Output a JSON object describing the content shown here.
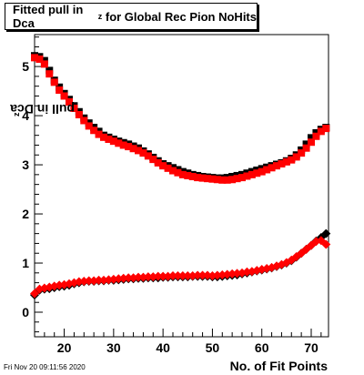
{
  "title": {
    "main": "Fitted pull in Dca",
    "sub": "z",
    "rest": " for Global Rec Pion NoHits"
  },
  "stamp": "Fri Nov 20 09:11:56 2020",
  "chart_data": {
    "type": "scatter",
    "title": "Fitted pull in Dca_z for Global Rec Pion NoHits",
    "xlabel": "No. of Fit Points",
    "ylabel": "pull in Dca_z",
    "ylabel_main": "pull in Dca",
    "ylabel_sub": "z",
    "xlim": [
      14,
      73.5
    ],
    "ylim": [
      -0.5,
      5.65
    ],
    "xticks": [
      20,
      30,
      40,
      50,
      60,
      70
    ],
    "xticklabels": [
      "20",
      "30",
      "40",
      "50",
      "60",
      "70"
    ],
    "yticks": [
      0,
      1,
      2,
      3,
      4,
      5
    ],
    "yticklabels": [
      "0",
      "1",
      "2",
      "3",
      "4",
      "5"
    ],
    "grid": false,
    "legend": "none",
    "series": [
      {
        "marker": "square",
        "color": "#000000",
        "x": [
          14,
          15,
          16,
          17,
          18,
          19,
          20,
          21,
          22,
          23,
          24,
          25,
          26,
          27,
          28,
          29,
          30,
          31,
          32,
          33,
          34,
          35,
          36,
          37,
          38,
          39,
          40,
          41,
          42,
          43,
          44,
          45,
          46,
          47,
          48,
          49,
          50,
          51,
          52,
          53,
          54,
          55,
          56,
          57,
          58,
          59,
          60,
          61,
          62,
          63,
          64,
          65,
          66,
          67,
          68,
          69,
          70,
          71,
          72,
          73
        ],
        "y": [
          5.22,
          5.2,
          5.12,
          4.92,
          4.72,
          4.58,
          4.45,
          4.33,
          4.2,
          4.08,
          3.95,
          3.85,
          3.76,
          3.68,
          3.6,
          3.56,
          3.52,
          3.48,
          3.45,
          3.42,
          3.38,
          3.34,
          3.28,
          3.22,
          3.15,
          3.08,
          3.02,
          2.98,
          2.94,
          2.9,
          2.86,
          2.83,
          2.8,
          2.78,
          2.76,
          2.75,
          2.74,
          2.73,
          2.73,
          2.74,
          2.76,
          2.78,
          2.8,
          2.83,
          2.86,
          2.89,
          2.92,
          2.95,
          2.98,
          3.01,
          3.04,
          3.08,
          3.13,
          3.2,
          3.3,
          3.42,
          3.55,
          3.65,
          3.72,
          3.76
        ]
      },
      {
        "marker": "square",
        "color": "#ff0000",
        "x": [
          14,
          15,
          16,
          17,
          18,
          19,
          20,
          21,
          22,
          23,
          24,
          25,
          26,
          27,
          28,
          29,
          30,
          31,
          32,
          33,
          34,
          35,
          36,
          37,
          38,
          39,
          40,
          41,
          42,
          43,
          44,
          45,
          46,
          47,
          48,
          49,
          50,
          51,
          52,
          53,
          54,
          55,
          56,
          57,
          58,
          59,
          60,
          61,
          62,
          63,
          64,
          65,
          66,
          67,
          68,
          69,
          70,
          71,
          72,
          73
        ],
        "y": [
          5.18,
          5.15,
          5.05,
          4.85,
          4.68,
          4.52,
          4.4,
          4.28,
          4.15,
          4.02,
          3.9,
          3.79,
          3.7,
          3.62,
          3.56,
          3.52,
          3.48,
          3.44,
          3.4,
          3.37,
          3.33,
          3.29,
          3.24,
          3.18,
          3.11,
          3.04,
          2.98,
          2.93,
          2.88,
          2.84,
          2.8,
          2.78,
          2.76,
          2.74,
          2.73,
          2.72,
          2.71,
          2.7,
          2.69,
          2.69,
          2.7,
          2.72,
          2.74,
          2.77,
          2.8,
          2.83,
          2.86,
          2.9,
          2.94,
          2.98,
          3.02,
          3.06,
          3.1,
          3.16,
          3.24,
          3.34,
          3.46,
          3.58,
          3.68,
          3.74
        ]
      },
      {
        "marker": "diamond",
        "color": "#000000",
        "x": [
          14,
          15,
          16,
          17,
          18,
          19,
          20,
          21,
          22,
          23,
          24,
          25,
          26,
          27,
          28,
          29,
          30,
          31,
          32,
          33,
          34,
          35,
          36,
          37,
          38,
          39,
          40,
          41,
          42,
          43,
          44,
          45,
          46,
          47,
          48,
          49,
          50,
          51,
          52,
          53,
          54,
          55,
          56,
          57,
          58,
          59,
          60,
          61,
          62,
          63,
          64,
          65,
          66,
          67,
          68,
          69,
          70,
          71,
          72,
          73
        ],
        "y": [
          0.35,
          0.45,
          0.47,
          0.48,
          0.5,
          0.52,
          0.53,
          0.55,
          0.58,
          0.6,
          0.62,
          0.63,
          0.63,
          0.64,
          0.64,
          0.65,
          0.65,
          0.66,
          0.67,
          0.68,
          0.68,
          0.69,
          0.69,
          0.7,
          0.7,
          0.7,
          0.71,
          0.71,
          0.72,
          0.72,
          0.72,
          0.72,
          0.73,
          0.73,
          0.73,
          0.73,
          0.72,
          0.72,
          0.73,
          0.74,
          0.75,
          0.76,
          0.78,
          0.8,
          0.82,
          0.84,
          0.86,
          0.88,
          0.9,
          0.93,
          0.96,
          1.0,
          1.05,
          1.12,
          1.2,
          1.28,
          1.36,
          1.45,
          1.52,
          1.6
        ]
      },
      {
        "marker": "diamond",
        "color": "#ff0000",
        "x": [
          14,
          15,
          16,
          17,
          18,
          19,
          20,
          21,
          22,
          23,
          24,
          25,
          26,
          27,
          28,
          29,
          30,
          31,
          32,
          33,
          34,
          35,
          36,
          37,
          38,
          39,
          40,
          41,
          42,
          43,
          44,
          45,
          46,
          47,
          48,
          49,
          50,
          51,
          52,
          53,
          54,
          55,
          56,
          57,
          58,
          59,
          60,
          61,
          62,
          63,
          64,
          65,
          66,
          67,
          68,
          69,
          70,
          71,
          72,
          73
        ],
        "y": [
          0.38,
          0.47,
          0.49,
          0.51,
          0.53,
          0.55,
          0.56,
          0.58,
          0.6,
          0.62,
          0.63,
          0.64,
          0.64,
          0.65,
          0.65,
          0.66,
          0.67,
          0.68,
          0.69,
          0.7,
          0.7,
          0.71,
          0.71,
          0.72,
          0.72,
          0.73,
          0.73,
          0.73,
          0.74,
          0.74,
          0.74,
          0.74,
          0.74,
          0.75,
          0.75,
          0.75,
          0.74,
          0.75,
          0.76,
          0.77,
          0.78,
          0.79,
          0.8,
          0.82,
          0.83,
          0.85,
          0.87,
          0.89,
          0.91,
          0.94,
          0.97,
          1.01,
          1.06,
          1.13,
          1.2,
          1.28,
          1.36,
          1.44,
          1.46,
          1.38
        ]
      }
    ]
  }
}
